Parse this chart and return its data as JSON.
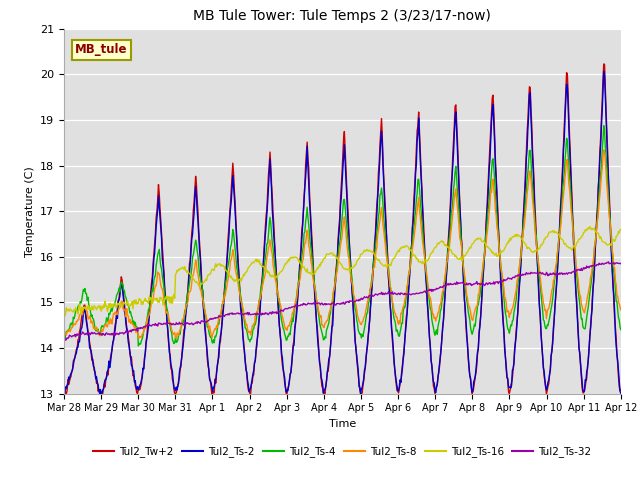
{
  "title": "MB Tule Tower: Tule Temps 2 (3/23/17-now)",
  "xlabel": "Time",
  "ylabel": "Temperature (C)",
  "ylim": [
    13.0,
    21.0
  ],
  "yticks": [
    13.0,
    14.0,
    15.0,
    16.0,
    17.0,
    18.0,
    19.0,
    20.0,
    21.0
  ],
  "plot_bg_color": "#e0e0e0",
  "series_colors": {
    "Tul2_Tw+2": "#cc0000",
    "Tul2_Ts-2": "#0000cc",
    "Tul2_Ts-4": "#00bb00",
    "Tul2_Ts-8": "#ff8800",
    "Tul2_Ts-16": "#cccc00",
    "Tul2_Ts-32": "#9900aa"
  },
  "legend_label": "MB_tule",
  "xtick_labels": [
    "Mar 28",
    "Mar 29",
    "Mar 30",
    "Mar 31",
    "Apr 1",
    "Apr 2",
    "Apr 3",
    "Apr 4",
    "Apr 5",
    "Apr 6",
    "Apr 7",
    "Apr 8",
    "Apr 9",
    "Apr 10",
    "Apr 11",
    "Apr 12"
  ],
  "num_days": 15,
  "pts_per_day": 48,
  "line_width": 1.0
}
